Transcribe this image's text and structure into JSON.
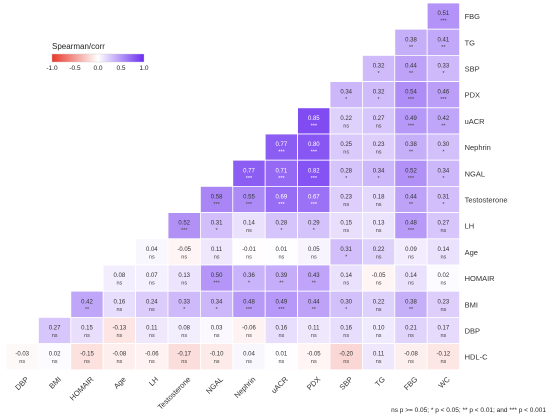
{
  "chart_data": {
    "type": "heatmap",
    "rows": [
      "FBG",
      "TG",
      "SBP",
      "PDX",
      "uACR",
      "Nephrin",
      "NGAL",
      "Testosterone",
      "LH",
      "Age",
      "HOMAIR",
      "BMI",
      "DBP",
      "HDL-C"
    ],
    "columns": [
      "DBP",
      "BMI",
      "HOMAIR",
      "Age",
      "LH",
      "Testosterone",
      "NGAL",
      "Nephrin",
      "uACR",
      "PDX",
      "SBP",
      "TG",
      "FBG",
      "WC"
    ],
    "cells": [
      [
        null,
        null,
        null,
        null,
        null,
        null,
        null,
        null,
        null,
        null,
        null,
        null,
        null,
        {
          "v": "0.51",
          "s": "***"
        }
      ],
      [
        null,
        null,
        null,
        null,
        null,
        null,
        null,
        null,
        null,
        null,
        null,
        null,
        {
          "v": "0.38",
          "s": "**"
        },
        {
          "v": "0.41",
          "s": "**"
        }
      ],
      [
        null,
        null,
        null,
        null,
        null,
        null,
        null,
        null,
        null,
        null,
        null,
        {
          "v": "0.32",
          "s": "*"
        },
        {
          "v": "0.44",
          "s": "**"
        },
        {
          "v": "0.33",
          "s": "*"
        }
      ],
      [
        null,
        null,
        null,
        null,
        null,
        null,
        null,
        null,
        null,
        null,
        {
          "v": "0.34",
          "s": "*"
        },
        {
          "v": "0.32",
          "s": "*"
        },
        {
          "v": "0.54",
          "s": "***"
        },
        {
          "v": "0.46",
          "s": "***"
        }
      ],
      [
        null,
        null,
        null,
        null,
        null,
        null,
        null,
        null,
        null,
        {
          "v": "0.85",
          "s": "***"
        },
        {
          "v": "0.22",
          "s": "ns"
        },
        {
          "v": "0.27",
          "s": "ns"
        },
        {
          "v": "0.49",
          "s": "***"
        },
        {
          "v": "0.42",
          "s": "**"
        }
      ],
      [
        null,
        null,
        null,
        null,
        null,
        null,
        null,
        null,
        {
          "v": "0.77",
          "s": "***"
        },
        {
          "v": "0.80",
          "s": "***"
        },
        {
          "v": "0.25",
          "s": "ns"
        },
        {
          "v": "0.23",
          "s": "ns"
        },
        {
          "v": "0.38",
          "s": "**"
        },
        {
          "v": "0.30",
          "s": "*"
        }
      ],
      [
        null,
        null,
        null,
        null,
        null,
        null,
        null,
        {
          "v": "0.77",
          "s": "***"
        },
        {
          "v": "0.71",
          "s": "***"
        },
        {
          "v": "0.82",
          "s": "***"
        },
        {
          "v": "0.28",
          "s": "*"
        },
        {
          "v": "0.34",
          "s": "*"
        },
        {
          "v": "0.52",
          "s": "***"
        },
        {
          "v": "0.34",
          "s": "*"
        }
      ],
      [
        null,
        null,
        null,
        null,
        null,
        null,
        {
          "v": "0.58",
          "s": "***"
        },
        {
          "v": "0.55",
          "s": "***"
        },
        {
          "v": "0.69",
          "s": "***"
        },
        {
          "v": "0.67",
          "s": "***"
        },
        {
          "v": "0.23",
          "s": "ns"
        },
        {
          "v": "0.18",
          "s": "ns"
        },
        {
          "v": "0.44",
          "s": "**"
        },
        {
          "v": "0.31",
          "s": "*"
        }
      ],
      [
        null,
        null,
        null,
        null,
        null,
        {
          "v": "0.52",
          "s": "***"
        },
        {
          "v": "0.31",
          "s": "*"
        },
        {
          "v": "0.14",
          "s": "ns"
        },
        {
          "v": "0.28",
          "s": "*"
        },
        {
          "v": "0.29",
          "s": "*"
        },
        {
          "v": "0.15",
          "s": "ns"
        },
        {
          "v": "0.13",
          "s": "ns"
        },
        {
          "v": "0.48",
          "s": "***"
        },
        {
          "v": "0.27",
          "s": "ns"
        }
      ],
      [
        null,
        null,
        null,
        null,
        {
          "v": "0.04",
          "s": "ns"
        },
        {
          "v": "-0.05",
          "s": "ns"
        },
        {
          "v": "0.11",
          "s": "ns"
        },
        {
          "v": "-0.01",
          "s": "ns"
        },
        {
          "v": "0.01",
          "s": "ns"
        },
        {
          "v": "0.05",
          "s": "ns"
        },
        {
          "v": "0.31",
          "s": "*"
        },
        {
          "v": "0.22",
          "s": "ns"
        },
        {
          "v": "0.09",
          "s": "ns"
        },
        {
          "v": "0.14",
          "s": "ns"
        }
      ],
      [
        null,
        null,
        null,
        {
          "v": "0.08",
          "s": "ns"
        },
        {
          "v": "0.07",
          "s": "ns"
        },
        {
          "v": "0.13",
          "s": "ns"
        },
        {
          "v": "0.50",
          "s": "***"
        },
        {
          "v": "0.36",
          "s": "*"
        },
        {
          "v": "0.39",
          "s": "**"
        },
        {
          "v": "0.43",
          "s": "**"
        },
        {
          "v": "0.14",
          "s": "ns"
        },
        {
          "v": "-0.05",
          "s": "ns"
        },
        {
          "v": "0.14",
          "s": "ns"
        },
        {
          "v": "0.02",
          "s": "ns"
        }
      ],
      [
        null,
        null,
        {
          "v": "0.42",
          "s": "**"
        },
        {
          "v": "0.16",
          "s": "ns"
        },
        {
          "v": "0.24",
          "s": "ns"
        },
        {
          "v": "0.33",
          "s": "*"
        },
        {
          "v": "0.34",
          "s": "*"
        },
        {
          "v": "0.48",
          "s": "***"
        },
        {
          "v": "0.49",
          "s": "***"
        },
        {
          "v": "0.44",
          "s": "**"
        },
        {
          "v": "0.30",
          "s": "*"
        },
        {
          "v": "0.22",
          "s": "ns"
        },
        {
          "v": "0.38",
          "s": "**"
        },
        {
          "v": "0.23",
          "s": "ns"
        }
      ],
      [
        null,
        {
          "v": "0.27",
          "s": "ns"
        },
        {
          "v": "0.15",
          "s": "ns"
        },
        {
          "v": "-0.13",
          "s": "ns"
        },
        {
          "v": "0.11",
          "s": "ns"
        },
        {
          "v": "0.08",
          "s": "ns"
        },
        {
          "v": "0.03",
          "s": "ns"
        },
        {
          "v": "-0.06",
          "s": "ns"
        },
        {
          "v": "0.16",
          "s": "ns"
        },
        {
          "v": "0.11",
          "s": "ns"
        },
        {
          "v": "0.16",
          "s": "ns"
        },
        {
          "v": "0.10",
          "s": "ns"
        },
        {
          "v": "0.21",
          "s": "ns"
        },
        {
          "v": "0.17",
          "s": "ns"
        }
      ],
      [
        {
          "v": "-0.03",
          "s": "ns"
        },
        {
          "v": "0.02",
          "s": "ns"
        },
        {
          "v": "-0.15",
          "s": "ns"
        },
        {
          "v": "-0.08",
          "s": "ns"
        },
        {
          "v": "-0.06",
          "s": "ns"
        },
        {
          "v": "-0.17",
          "s": "ns"
        },
        {
          "v": "-0.10",
          "s": "ns"
        },
        {
          "v": "0.04",
          "s": "ns"
        },
        {
          "v": "0.01",
          "s": "ns"
        },
        {
          "v": "-0.05",
          "s": "ns"
        },
        {
          "v": "-0.20",
          "s": "ns"
        },
        {
          "v": "0.11",
          "s": "ns"
        },
        {
          "v": "-0.08",
          "s": "ns"
        },
        {
          "v": "-0.12",
          "s": "ns"
        }
      ]
    ],
    "value_range": [
      -1.0,
      1.0
    ],
    "colorscale": {
      "negative": "#e8382a",
      "zero": "#ffffff",
      "positive": "#6a2cf0"
    },
    "legend": {
      "title": "Spearman/corr",
      "ticks": [
        "-1.0",
        "-0.5",
        "0.0",
        "0.5",
        "1.0"
      ],
      "position": "top-left"
    },
    "footnote": "ns p >= 0.05; * p < 0.05; ** p < 0.01; and *** p < 0.001"
  }
}
